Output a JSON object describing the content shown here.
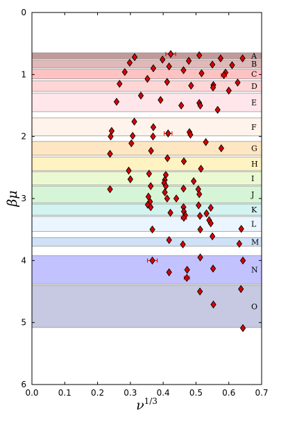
{
  "chart_data": {
    "type": "scatter",
    "xlabel": "ν^1/3",
    "ylabel": "βμ",
    "xlim": [
      0.0,
      0.7
    ],
    "ylim": [
      6,
      0
    ],
    "xticks": [
      "0.0",
      "0.1",
      "0.2",
      "0.3",
      "0.4",
      "0.5",
      "0.6",
      "0.7"
    ],
    "yticks": [
      "0",
      "1",
      "2",
      "3",
      "4",
      "5",
      "6"
    ],
    "grid": false,
    "bands": [
      {
        "label": "A",
        "y0": 0.65,
        "y1": 0.75,
        "color": "#b38080"
      },
      {
        "label": "B",
        "y0": 0.77,
        "y1": 0.89,
        "color": "#d9a6a6"
      },
      {
        "label": "C",
        "y0": 0.91,
        "y1": 1.07,
        "color": "#ffb3b3"
      },
      {
        "label": "D",
        "y0": 1.1,
        "y1": 1.27,
        "color": "#ffcccc"
      },
      {
        "label": "E",
        "y0": 1.3,
        "y1": 1.6,
        "color": "#ffe0e6"
      },
      {
        "label": "F",
        "y0": 1.7,
        "y1": 1.99,
        "color": "#fff0e6"
      },
      {
        "label": "G",
        "y0": 2.08,
        "y1": 2.3,
        "color": "#ffe0b3"
      },
      {
        "label": "H",
        "y0": 2.33,
        "y1": 2.55,
        "color": "#fff0b3"
      },
      {
        "label": "I",
        "y0": 2.57,
        "y1": 2.78,
        "color": "#e6f7c8"
      },
      {
        "label": "J",
        "y0": 2.8,
        "y1": 3.07,
        "color": "#ccf2cc"
      },
      {
        "label": "K",
        "y0": 3.09,
        "y1": 3.27,
        "color": "#c8f0ec"
      },
      {
        "label": "L",
        "y0": 3.29,
        "y1": 3.53,
        "color": "#e6f2ff"
      },
      {
        "label": "M",
        "y0": 3.63,
        "y1": 3.77,
        "color": "#c3d9f5"
      },
      {
        "label": "N",
        "y0": 3.92,
        "y1": 4.38,
        "color": "#b3b3ff"
      },
      {
        "label": "O",
        "y0": 4.4,
        "y1": 5.08,
        "color": "#b8bcd9"
      }
    ],
    "series": [
      {
        "marker": "diamond",
        "color": "#dd0000",
        "points": [
          {
            "x": 0.423,
            "y": 0.67,
            "xerr": 0.015
          },
          {
            "x": 0.313,
            "y": 0.72
          },
          {
            "x": 0.51,
            "y": 0.69
          },
          {
            "x": 0.478,
            "y": 0.78
          },
          {
            "x": 0.398,
            "y": 0.76
          },
          {
            "x": 0.575,
            "y": 0.74
          },
          {
            "x": 0.642,
            "y": 0.74
          },
          {
            "x": 0.298,
            "y": 0.81
          },
          {
            "x": 0.61,
            "y": 0.85
          },
          {
            "x": 0.55,
            "y": 0.84
          },
          {
            "x": 0.418,
            "y": 0.87
          },
          {
            "x": 0.37,
            "y": 0.9
          },
          {
            "x": 0.462,
            "y": 0.93
          },
          {
            "x": 0.283,
            "y": 0.96
          },
          {
            "x": 0.59,
            "y": 0.97
          },
          {
            "x": 0.585,
            "y": 1.01,
            "xerr": 0.008
          },
          {
            "x": 0.517,
            "y": 0.98
          },
          {
            "x": 0.352,
            "y": 1.07
          },
          {
            "x": 0.412,
            "y": 1.12
          },
          {
            "x": 0.267,
            "y": 1.15
          },
          {
            "x": 0.485,
            "y": 1.18
          },
          {
            "x": 0.553,
            "y": 1.17
          },
          {
            "x": 0.552,
            "y": 1.21
          },
          {
            "x": 0.627,
            "y": 1.13
          },
          {
            "x": 0.6,
            "y": 1.26
          },
          {
            "x": 0.332,
            "y": 1.34
          },
          {
            "x": 0.392,
            "y": 1.41
          },
          {
            "x": 0.258,
            "y": 1.44
          },
          {
            "x": 0.51,
            "y": 1.46
          },
          {
            "x": 0.513,
            "y": 1.5
          },
          {
            "x": 0.455,
            "y": 1.5
          },
          {
            "x": 0.566,
            "y": 1.57
          },
          {
            "x": 0.312,
            "y": 1.76
          },
          {
            "x": 0.37,
            "y": 1.85
          },
          {
            "x": 0.243,
            "y": 1.91
          },
          {
            "x": 0.48,
            "y": 1.93
          },
          {
            "x": 0.483,
            "y": 1.97
          },
          {
            "x": 0.415,
            "y": 1.95,
            "xerr": 0.012
          },
          {
            "x": 0.24,
            "y": 2.0
          },
          {
            "x": 0.307,
            "y": 1.99
          },
          {
            "x": 0.369,
            "y": 2.0
          },
          {
            "x": 0.53,
            "y": 2.09
          },
          {
            "x": 0.303,
            "y": 2.11
          },
          {
            "x": 0.577,
            "y": 2.19
          },
          {
            "x": 0.363,
            "y": 2.23
          },
          {
            "x": 0.238,
            "y": 2.28
          },
          {
            "x": 0.413,
            "y": 2.35
          },
          {
            "x": 0.463,
            "y": 2.4
          },
          {
            "x": 0.515,
            "y": 2.52
          },
          {
            "x": 0.295,
            "y": 2.55
          },
          {
            "x": 0.357,
            "y": 2.6
          },
          {
            "x": 0.408,
            "y": 2.62
          },
          {
            "x": 0.3,
            "y": 2.69
          },
          {
            "x": 0.405,
            "y": 2.7
          },
          {
            "x": 0.403,
            "y": 2.75
          },
          {
            "x": 0.493,
            "y": 2.72
          },
          {
            "x": 0.362,
            "y": 2.8
          },
          {
            "x": 0.408,
            "y": 2.8
          },
          {
            "x": 0.238,
            "y": 2.85
          },
          {
            "x": 0.462,
            "y": 2.84
          },
          {
            "x": 0.507,
            "y": 2.85
          },
          {
            "x": 0.51,
            "y": 2.93
          },
          {
            "x": 0.405,
            "y": 2.9
          },
          {
            "x": 0.355,
            "y": 2.97
          },
          {
            "x": 0.412,
            "y": 3.0
          },
          {
            "x": 0.44,
            "y": 3.0
          },
          {
            "x": 0.36,
            "y": 3.05
          },
          {
            "x": 0.353,
            "y": 3.1
          },
          {
            "x": 0.362,
            "y": 3.14
          },
          {
            "x": 0.508,
            "y": 3.11
          },
          {
            "x": 0.462,
            "y": 3.14
          },
          {
            "x": 0.545,
            "y": 3.15
          },
          {
            "x": 0.463,
            "y": 3.21
          },
          {
            "x": 0.467,
            "y": 3.27
          },
          {
            "x": 0.463,
            "y": 3.31,
            "xerr": 0.008
          },
          {
            "x": 0.532,
            "y": 3.24
          },
          {
            "x": 0.422,
            "y": 3.23
          },
          {
            "x": 0.512,
            "y": 3.28
          },
          {
            "x": 0.54,
            "y": 3.35
          },
          {
            "x": 0.545,
            "y": 3.4
          },
          {
            "x": 0.367,
            "y": 3.5
          },
          {
            "x": 0.513,
            "y": 3.5
          },
          {
            "x": 0.638,
            "y": 3.49
          },
          {
            "x": 0.55,
            "y": 3.61
          },
          {
            "x": 0.418,
            "y": 3.67
          },
          {
            "x": 0.632,
            "y": 3.73
          },
          {
            "x": 0.46,
            "y": 3.74
          },
          {
            "x": 0.513,
            "y": 3.95
          },
          {
            "x": 0.367,
            "y": 4.0,
            "xerr": 0.015
          },
          {
            "x": 0.643,
            "y": 4.0
          },
          {
            "x": 0.552,
            "y": 4.13
          },
          {
            "x": 0.473,
            "y": 4.15
          },
          {
            "x": 0.418,
            "y": 4.19
          },
          {
            "x": 0.472,
            "y": 4.28,
            "xerr": 0.008
          },
          {
            "x": 0.637,
            "y": 4.46
          },
          {
            "x": 0.512,
            "y": 4.5
          },
          {
            "x": 0.553,
            "y": 4.71
          },
          {
            "x": 0.643,
            "y": 5.09
          }
        ]
      }
    ]
  }
}
